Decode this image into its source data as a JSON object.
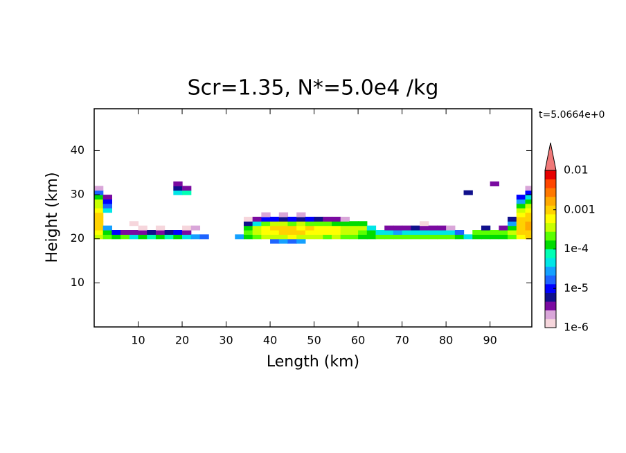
{
  "chart_data": {
    "type": "heatmap",
    "title": "Scr=1.35, N*=5.0e4 /kg",
    "x_label": "Length  (km)",
    "y_label": "Height  (km)",
    "annotation": "t=5.0664e+0",
    "xlim": [
      0,
      99.5
    ],
    "ylim": [
      0,
      49.5
    ],
    "xticks": [
      10,
      20,
      30,
      40,
      50,
      60,
      70,
      80,
      90
    ],
    "yticks": [
      10,
      20,
      30,
      40
    ],
    "colorbar": {
      "log": true,
      "extend": "max",
      "lim": [
        1e-06,
        0.01
      ],
      "colors": [
        "#f6d6dc",
        "#d9a6d9",
        "#7a0aa0",
        "#10108c",
        "#0000ff",
        "#1e64ff",
        "#14a0ff",
        "#00e6e6",
        "#00ffb4",
        "#00dc00",
        "#5aff00",
        "#c8ff00",
        "#ffff00",
        "#ffd200",
        "#ffaa00",
        "#ff7800",
        "#ff4600",
        "#e60000"
      ],
      "extend_color": "#f07878",
      "ticks": [
        {
          "value": 1e-06,
          "label": "1e-6"
        },
        {
          "value": 1e-05,
          "label": "1e-5"
        },
        {
          "value": 0.0001,
          "label": "1e-4"
        },
        0.001,
        0.01
      ]
    },
    "cells": [
      [
        1,
        20.5,
        0.0003
      ],
      [
        1,
        21.5,
        0.0005
      ],
      [
        1,
        22.5,
        0.0008
      ],
      [
        1,
        23.5,
        0.001
      ],
      [
        1,
        24.5,
        0.001
      ],
      [
        1,
        25.5,
        0.0008
      ],
      [
        1,
        26.5,
        0.0006
      ],
      [
        1,
        27.5,
        0.0004
      ],
      [
        1,
        28.5,
        0.0003
      ],
      [
        1,
        29.5,
        0.0001
      ],
      [
        1,
        30.5,
        2e-05
      ],
      [
        1,
        31.5,
        2e-06
      ],
      [
        3,
        20.5,
        0.0002
      ],
      [
        3,
        21.5,
        0.0001
      ],
      [
        3,
        22.5,
        3e-05
      ],
      [
        3,
        26.5,
        5e-05
      ],
      [
        3,
        27.5,
        2e-05
      ],
      [
        3,
        28.5,
        1e-05
      ],
      [
        3,
        29.5,
        3e-06
      ],
      [
        5,
        20.5,
        0.0001
      ],
      [
        5,
        21.5,
        1e-05
      ],
      [
        7,
        20.5,
        0.0002
      ],
      [
        7,
        21.5,
        3e-06
      ],
      [
        9,
        20.5,
        5e-05
      ],
      [
        9,
        21.5,
        3e-06
      ],
      [
        9,
        23.5,
        1.5e-06
      ],
      [
        11,
        20.5,
        0.0001
      ],
      [
        11,
        21.5,
        4e-06
      ],
      [
        11,
        22.5,
        1.5e-06
      ],
      [
        13,
        20.5,
        8e-05
      ],
      [
        13,
        21.5,
        5e-06
      ],
      [
        15,
        20.5,
        0.0001
      ],
      [
        15,
        21.5,
        3e-06
      ],
      [
        15,
        22.5,
        1.5e-06
      ],
      [
        17,
        20.5,
        6e-05
      ],
      [
        17,
        21.5,
        5e-06
      ],
      [
        19,
        20.5,
        0.0001
      ],
      [
        19,
        21.5,
        1e-05
      ],
      [
        19,
        30.5,
        5e-05
      ],
      [
        19,
        31.5,
        5e-06
      ],
      [
        19,
        32.5,
        3e-06
      ],
      [
        21,
        20.5,
        5e-05
      ],
      [
        21,
        21.5,
        4e-06
      ],
      [
        21,
        22.5,
        1.5e-06
      ],
      [
        21,
        30.5,
        8e-05
      ],
      [
        21,
        31.5,
        3e-06
      ],
      [
        23,
        20.5,
        3e-05
      ],
      [
        23,
        22.5,
        2e-06
      ],
      [
        25,
        20.5,
        2e-05
      ],
      [
        33,
        20.5,
        3e-05
      ],
      [
        35,
        20.5,
        0.0001
      ],
      [
        35,
        21.5,
        0.0002
      ],
      [
        35,
        22.5,
        0.0001
      ],
      [
        35,
        23.5,
        5e-06
      ],
      [
        35,
        24.5,
        1.5e-06
      ],
      [
        37,
        20.5,
        0.0002
      ],
      [
        37,
        21.5,
        0.0004
      ],
      [
        37,
        22.5,
        0.0003
      ],
      [
        37,
        23.5,
        5e-05
      ],
      [
        37,
        24.5,
        4e-06
      ],
      [
        39,
        20.5,
        0.0003
      ],
      [
        39,
        21.5,
        0.0006
      ],
      [
        39,
        22.5,
        0.0007
      ],
      [
        39,
        23.5,
        0.0002
      ],
      [
        39,
        24.5,
        1e-05
      ],
      [
        39,
        25.5,
        2e-06
      ],
      [
        41,
        19.5,
        2e-05
      ],
      [
        41,
        20.5,
        0.0003
      ],
      [
        41,
        21.5,
        0.0007
      ],
      [
        41,
        22.5,
        0.0008
      ],
      [
        41,
        23.5,
        0.0003
      ],
      [
        41,
        24.5,
        1e-05
      ],
      [
        43,
        19.5,
        3e-05
      ],
      [
        43,
        20.5,
        0.0004
      ],
      [
        43,
        21.5,
        0.0008
      ],
      [
        43,
        22.5,
        0.0009
      ],
      [
        43,
        23.5,
        0.0003
      ],
      [
        43,
        24.5,
        5e-06
      ],
      [
        43,
        25.5,
        2e-06
      ],
      [
        45,
        19.5,
        2e-05
      ],
      [
        45,
        20.5,
        0.0005
      ],
      [
        45,
        21.5,
        0.0009
      ],
      [
        45,
        22.5,
        0.0008
      ],
      [
        45,
        23.5,
        0.0002
      ],
      [
        45,
        24.5,
        1e-05
      ],
      [
        47,
        19.5,
        3e-05
      ],
      [
        47,
        20.5,
        0.0004
      ],
      [
        47,
        21.5,
        0.0008
      ],
      [
        47,
        22.5,
        0.0007
      ],
      [
        47,
        23.5,
        0.0003
      ],
      [
        47,
        24.5,
        5e-06
      ],
      [
        47,
        25.5,
        2e-06
      ],
      [
        49,
        20.5,
        0.0003
      ],
      [
        49,
        21.5,
        0.0007
      ],
      [
        49,
        22.5,
        0.0008
      ],
      [
        49,
        23.5,
        0.0002
      ],
      [
        49,
        24.5,
        1e-05
      ],
      [
        51,
        20.5,
        0.0003
      ],
      [
        51,
        21.5,
        0.0006
      ],
      [
        51,
        22.5,
        0.0007
      ],
      [
        51,
        23.5,
        0.0002
      ],
      [
        51,
        24.5,
        5e-06
      ],
      [
        53,
        20.5,
        0.0002
      ],
      [
        53,
        21.5,
        0.0005
      ],
      [
        53,
        22.5,
        0.0006
      ],
      [
        53,
        23.5,
        0.0002
      ],
      [
        53,
        24.5,
        4e-06
      ],
      [
        55,
        20.5,
        0.0003
      ],
      [
        55,
        21.5,
        0.0005
      ],
      [
        55,
        22.5,
        0.0005
      ],
      [
        55,
        23.5,
        0.0001
      ],
      [
        55,
        24.5,
        3e-06
      ],
      [
        57,
        20.5,
        0.0002
      ],
      [
        57,
        21.5,
        0.0004
      ],
      [
        57,
        22.5,
        0.0004
      ],
      [
        57,
        23.5,
        0.0001
      ],
      [
        57,
        24.5,
        2e-06
      ],
      [
        59,
        20.5,
        0.0002
      ],
      [
        59,
        21.5,
        0.0003
      ],
      [
        59,
        22.5,
        0.0003
      ],
      [
        59,
        23.5,
        0.0001
      ],
      [
        61,
        20.5,
        0.0001
      ],
      [
        61,
        21.5,
        0.0002
      ],
      [
        61,
        22.5,
        0.0003
      ],
      [
        61,
        23.5,
        0.0001
      ],
      [
        63,
        20.5,
        0.0001
      ],
      [
        63,
        21.5,
        0.0001
      ],
      [
        63,
        22.5,
        5e-05
      ],
      [
        65,
        20.5,
        0.0002
      ],
      [
        65,
        21.5,
        5e-05
      ],
      [
        67,
        20.5,
        0.0002
      ],
      [
        67,
        21.5,
        5e-05
      ],
      [
        67,
        22.5,
        4e-06
      ],
      [
        69,
        20.5,
        0.0002
      ],
      [
        69,
        21.5,
        3e-05
      ],
      [
        69,
        22.5,
        3e-06
      ],
      [
        71,
        20.5,
        0.0002
      ],
      [
        71,
        21.5,
        5e-05
      ],
      [
        71,
        22.5,
        4e-06
      ],
      [
        73,
        20.5,
        0.0002
      ],
      [
        73,
        21.5,
        5e-05
      ],
      [
        73,
        22.5,
        5e-06
      ],
      [
        75,
        20.5,
        0.0002
      ],
      [
        75,
        21.5,
        4e-05
      ],
      [
        75,
        22.5,
        4e-06
      ],
      [
        75,
        23.5,
        1.5e-06
      ],
      [
        77,
        20.5,
        0.0002
      ],
      [
        77,
        21.5,
        5e-05
      ],
      [
        77,
        22.5,
        3e-06
      ],
      [
        79,
        20.5,
        0.0002
      ],
      [
        79,
        21.5,
        5e-05
      ],
      [
        79,
        22.5,
        4e-06
      ],
      [
        81,
        20.5,
        0.0002
      ],
      [
        81,
        21.5,
        4e-05
      ],
      [
        81,
        22.5,
        2e-06
      ],
      [
        83,
        20.5,
        0.0001
      ],
      [
        83,
        21.5,
        2e-05
      ],
      [
        85,
        20.5,
        5e-05
      ],
      [
        85,
        30.5,
        5e-06
      ],
      [
        87,
        20.5,
        0.0001
      ],
      [
        87,
        21.5,
        0.0002
      ],
      [
        89,
        20.5,
        0.0001
      ],
      [
        89,
        21.5,
        0.0002
      ],
      [
        89,
        22.5,
        5e-06
      ],
      [
        91,
        20.5,
        0.0001
      ],
      [
        91,
        21.5,
        0.0002
      ],
      [
        91,
        32.5,
        4e-06
      ],
      [
        93,
        20.5,
        0.0001
      ],
      [
        93,
        21.5,
        0.0002
      ],
      [
        93,
        22.5,
        3e-06
      ],
      [
        95,
        20.5,
        0.0002
      ],
      [
        95,
        21.5,
        0.0003
      ],
      [
        95,
        22.5,
        0.0001
      ],
      [
        95,
        23.5,
        3e-05
      ],
      [
        95,
        24.5,
        5e-06
      ],
      [
        97,
        20.5,
        0.0005
      ],
      [
        97,
        21.5,
        0.0008
      ],
      [
        97,
        22.5,
        0.001
      ],
      [
        97,
        23.5,
        0.001
      ],
      [
        97,
        24.5,
        0.0008
      ],
      [
        97,
        25.5,
        0.0005
      ],
      [
        97,
        26.5,
        0.0003
      ],
      [
        97,
        27.5,
        0.0001
      ],
      [
        97,
        28.5,
        3e-05
      ],
      [
        97,
        29.5,
        1e-05
      ],
      [
        99,
        20.5,
        0.0008
      ],
      [
        99,
        21.5,
        0.001
      ],
      [
        99,
        22.5,
        0.0015
      ],
      [
        99,
        23.5,
        0.0015
      ],
      [
        99,
        24.5,
        0.001
      ],
      [
        99,
        25.5,
        0.0008
      ],
      [
        99,
        26.5,
        0.0005
      ],
      [
        99,
        27.5,
        0.0003
      ],
      [
        99,
        28.5,
        0.0001
      ],
      [
        99,
        29.5,
        5e-05
      ],
      [
        99,
        30.5,
        1e-05
      ],
      [
        99,
        31.5,
        2e-06
      ]
    ]
  }
}
